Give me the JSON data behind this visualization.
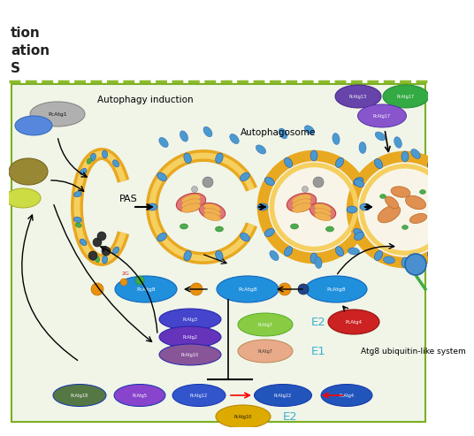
{
  "bg_top_color": "#ffffff",
  "bg_diagram_color": "#ffffff",
  "dashed_line_color": "#8fba2e",
  "diagram_bg_color": "#f0f5e8",
  "border_color": "#7ab020",
  "title_lines": [
    "tion",
    "ation",
    "S"
  ],
  "label_autophagy_induction": "Autophagy induction",
  "label_autophagosome": "Autophagosome",
  "label_PAS": "PAS",
  "label_E2_1": "E2",
  "label_E1": "E1",
  "label_E2_2": "E2",
  "label_atg8_system": "Atg8 ubiquitin-like system",
  "label_PcAtg1": "PcAtg1",
  "vesicle_outer_color": "#e8a820",
  "vesicle_inner_color": "#f5e8a0",
  "mito_outer_color": "#e07878",
  "mito_inner_color": "#f0c090",
  "mito_crista_color": "#f0b050",
  "blue_dot_color": "#4a9ad0",
  "green_dot_color": "#50aa50",
  "dark_dot_color": "#404040",
  "E2_color": "#40b0d0",
  "E1_color": "#40b0d0",
  "atg8_blue_color": "#2080cc",
  "orange_dot_color": "#e89010",
  "red_protein_color": "#cc2222",
  "stack_colors": [
    "#4444bb",
    "#6633bb",
    "#775588"
  ],
  "bottom_row_colors": [
    "#557744",
    "#7744cc",
    "#3355cc",
    "#3355cc",
    "#3355cc"
  ],
  "atg10_color": "#ddaa00",
  "pcatg7_green": "#88cc44",
  "pcatg7_peach": "#e8aa88"
}
